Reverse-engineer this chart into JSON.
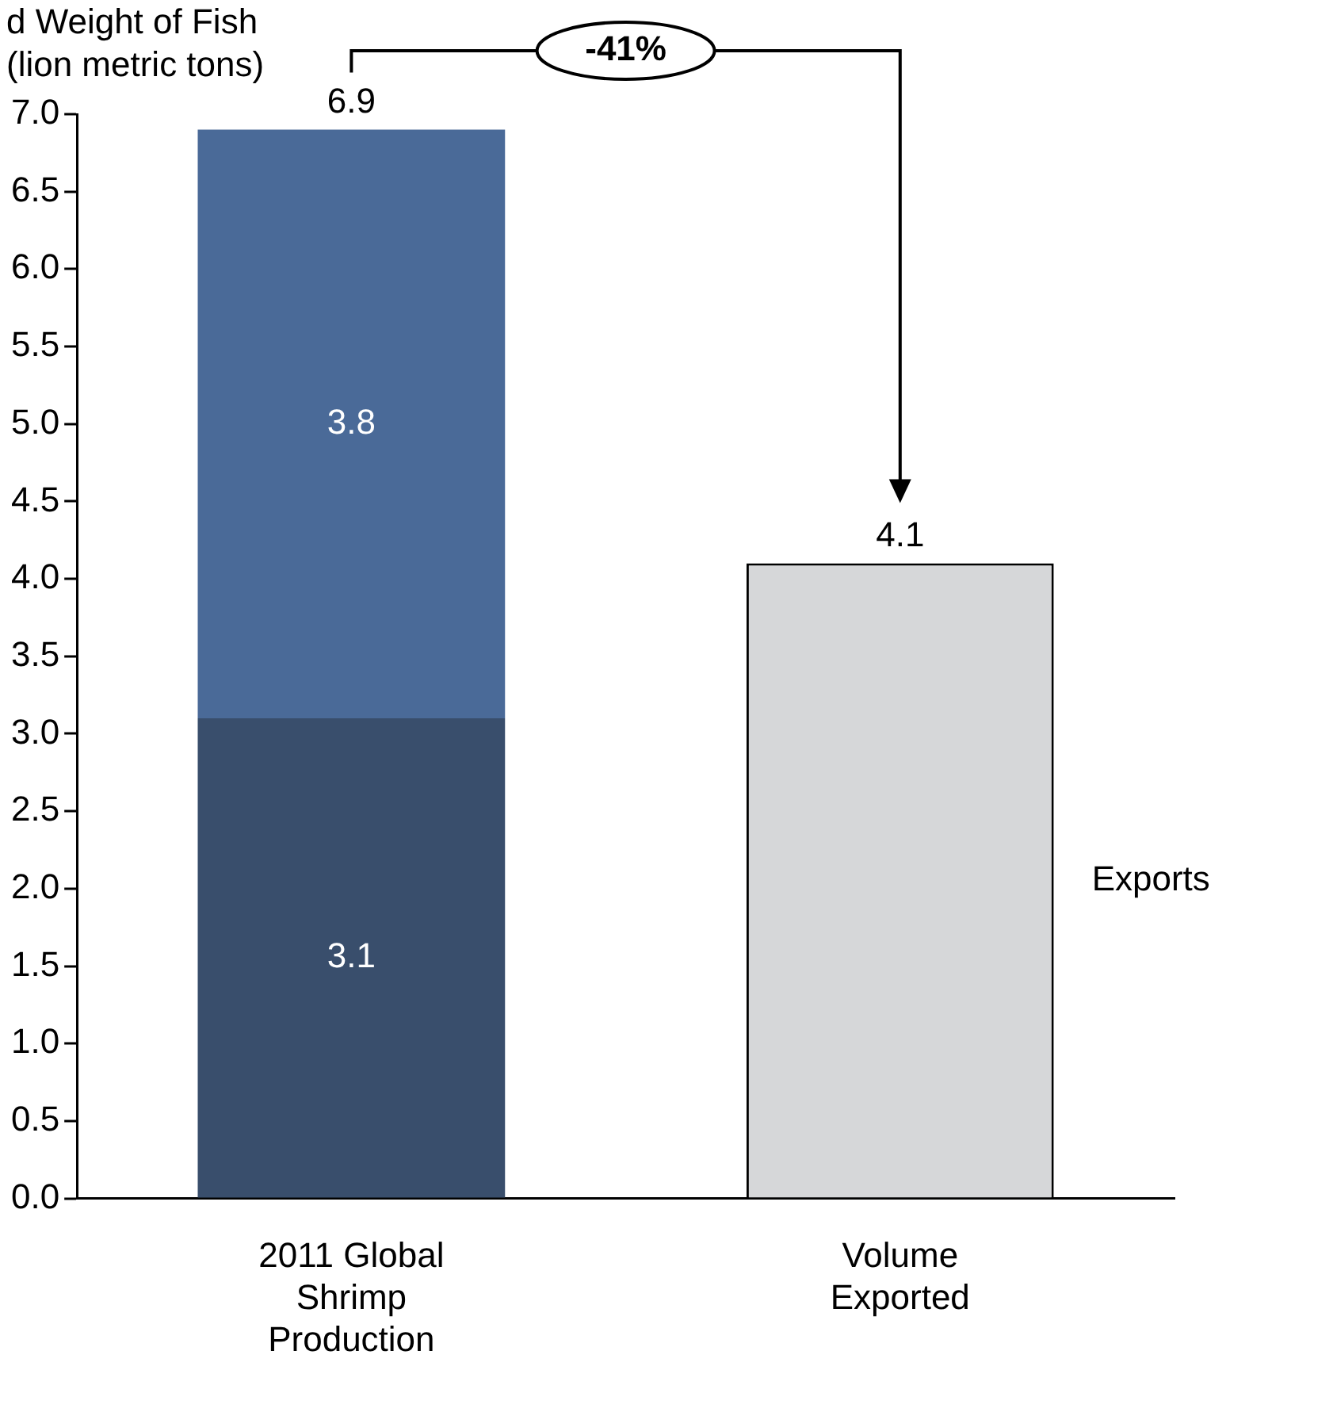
{
  "chart_data": {
    "type": "bar",
    "stacked": true,
    "ylabel": "d Weight of Fish\n(lion metric tons)",
    "categories": [
      "2011 Global Shrimp Production",
      "Volume Exported"
    ],
    "series": [
      {
        "color": "#394e6c",
        "values": [
          3.1,
          null
        ]
      },
      {
        "color": "#4a6a98",
        "values": [
          3.8,
          null
        ]
      },
      {
        "name": "Exports",
        "color": "#d6d7d9",
        "values": [
          null,
          4.1
        ]
      }
    ],
    "totals": [
      "6.9",
      null
    ],
    "data_labels": true,
    "annotations": [
      "-41%"
    ],
    "ylim": [
      0,
      7
    ],
    "yticks": [
      {
        "value": 0,
        "label": "0.0"
      },
      {
        "value": 0.5,
        "label": "0.5"
      },
      {
        "value": 1,
        "label": "1.0"
      },
      {
        "value": 1.5,
        "label": "1.5"
      },
      {
        "value": 2,
        "label": "2.0"
      },
      {
        "value": 2.5,
        "label": "2.5"
      },
      {
        "value": 3,
        "label": "3.0"
      },
      {
        "value": 3.5,
        "label": "3.5"
      },
      {
        "value": 4,
        "label": "4.0"
      },
      {
        "value": 4.5,
        "label": "4.5"
      },
      {
        "value": 5,
        "label": "5.0"
      },
      {
        "value": 5.5,
        "label": "5.5"
      },
      {
        "value": 6,
        "label": "6.0"
      },
      {
        "value": 6.5,
        "label": "6.5"
      },
      {
        "value": 7,
        "label": "7.0"
      }
    ],
    "grid": false,
    "legend": false
  }
}
